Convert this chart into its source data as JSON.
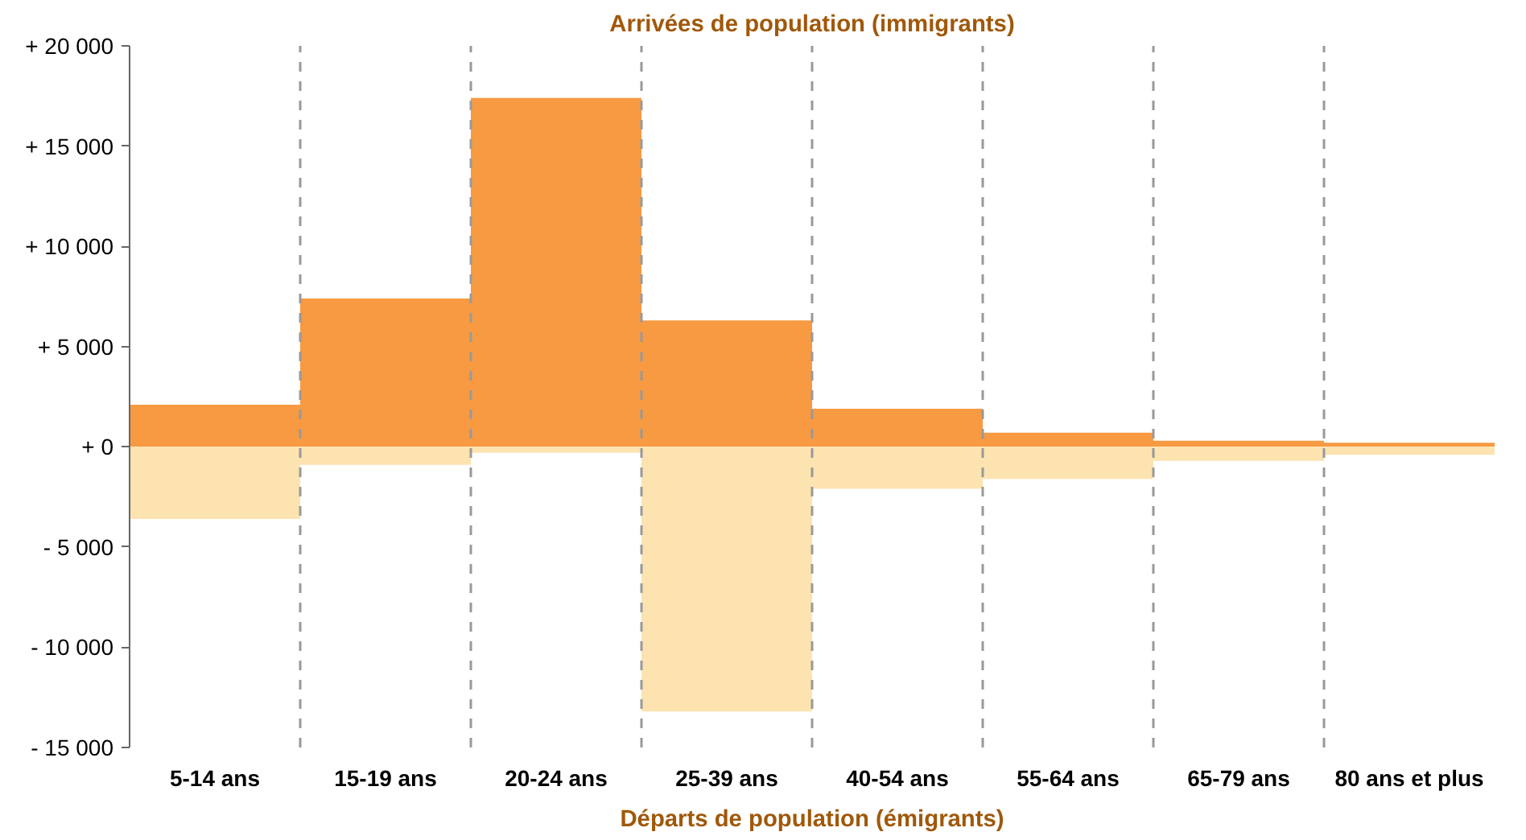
{
  "chart_data": {
    "type": "bar",
    "title": "Arrivées de population (immigrants)",
    "annotations": [
      "Départs de population (émigrants)"
    ],
    "categories": [
      "5-14 ans",
      "15-19 ans",
      "20-24 ans",
      "25-39 ans",
      "40-54 ans",
      "55-64 ans",
      "65-79 ans",
      "80 ans et plus"
    ],
    "stacked": true,
    "grid": "x",
    "series": [
      {
        "color": "#f79a42",
        "values": [
          2100,
          7400,
          17400,
          6300,
          1900,
          700,
          300,
          200
        ]
      },
      {
        "color": "#fde3b0",
        "values": [
          -3600,
          -900,
          -300,
          -13200,
          -2100,
          -1600,
          -700,
          -400
        ]
      }
    ],
    "ylim": [
      -15000,
      20000
    ],
    "yticks": [
      {
        "value": -15000,
        "label": "- 15 000"
      },
      {
        "value": -10000,
        "label": "- 10 000"
      },
      {
        "value": -5000,
        "label": "- 5 000"
      },
      {
        "value": 0,
        "label": "+ 0"
      },
      {
        "value": 5000,
        "label": "+ 5 000"
      },
      {
        "value": 10000,
        "label": "+ 10 000"
      },
      {
        "value": 15000,
        "label": "+ 15 000"
      },
      {
        "value": 20000,
        "label": "+ 20 000"
      }
    ]
  }
}
